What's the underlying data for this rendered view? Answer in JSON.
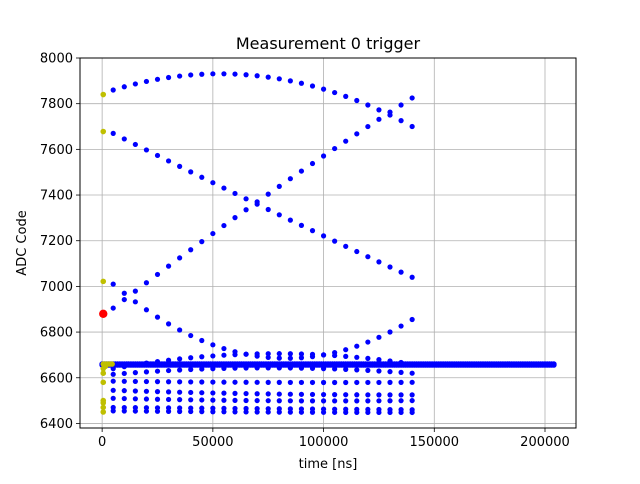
{
  "chart_data": {
    "type": "scatter",
    "title": "Measurement 0 trigger",
    "xlabel": "time [ns]",
    "ylabel": "ADC Code",
    "xlim": [
      -10000,
      214000
    ],
    "ylim": [
      6380,
      8000
    ],
    "grid": true,
    "xticks": [
      0,
      50000,
      100000,
      150000,
      200000
    ],
    "xtick_labels": [
      "0",
      "50000",
      "100000",
      "150000",
      "200000"
    ],
    "yticks": [
      6400,
      6600,
      6800,
      7000,
      7200,
      7400,
      7600,
      7800,
      8000
    ],
    "ytick_labels": [
      "6400",
      "6600",
      "6800",
      "7000",
      "7200",
      "7400",
      "7600",
      "7800",
      "8000"
    ],
    "colors": {
      "main": "#0000ff",
      "pre": "#bfbf00",
      "trigger": "#ff0000"
    },
    "series": [
      {
        "color": "#0000ff",
        "description": "curves sampled every 5000 ns from 5000 to 140000 ns",
        "x_start": 5000,
        "x_step": 5000,
        "count": 28,
        "curves": [
          {
            "kind": "quadratic",
            "points": [
              [
                5000,
                7860
              ],
              [
                47500,
                7930
              ],
              [
                140000,
                7700
              ]
            ]
          },
          {
            "kind": "quadratic",
            "points": [
              [
                5000,
                7670
              ],
              [
                70000,
                7360
              ],
              [
                140000,
                7040
              ]
            ]
          },
          {
            "kind": "quadratic",
            "points": [
              [
                5000,
                6905
              ],
              [
                70000,
                7370
              ],
              [
                140000,
                7825
              ]
            ]
          },
          {
            "kind": "quadratic",
            "points": [
              [
                5000,
                7010
              ],
              [
                100000,
                6700
              ],
              [
                140000,
                6855
              ]
            ]
          },
          {
            "kind": "quadratic",
            "points": [
              [
                5000,
                6640
              ],
              [
                100000,
                6700
              ],
              [
                140000,
                6660
              ]
            ]
          },
          {
            "kind": "quadratic",
            "points": [
              [
                5000,
                6615
              ],
              [
                100000,
                6640
              ],
              [
                140000,
                6620
              ]
            ]
          },
          {
            "kind": "quadratic",
            "points": [
              [
                5000,
                6585
              ],
              [
                70000,
                6580
              ],
              [
                140000,
                6580
              ]
            ]
          },
          {
            "kind": "quadratic",
            "points": [
              [
                5000,
                6545
              ],
              [
                70000,
                6530
              ],
              [
                140000,
                6525
              ]
            ]
          },
          {
            "kind": "quadratic",
            "points": [
              [
                5000,
                6510
              ],
              [
                70000,
                6500
              ],
              [
                140000,
                6500
              ]
            ]
          },
          {
            "kind": "quadratic",
            "points": [
              [
                5000,
                6470
              ],
              [
                70000,
                6465
              ],
              [
                140000,
                6460
              ]
            ]
          },
          {
            "kind": "quadratic",
            "points": [
              [
                5000,
                6455
              ],
              [
                70000,
                6450
              ],
              [
                140000,
                6448
              ]
            ]
          }
        ]
      },
      {
        "color": "#0000ff",
        "description": "dense baseline samples",
        "x_start": 0,
        "x_step": 1000,
        "count": 205,
        "y_values": [
          6656,
          6660
        ]
      },
      {
        "color": "#bfbf00",
        "description": "pre-trigger samples near t=0",
        "x": [
          500,
          500,
          500,
          500,
          500,
          500,
          500,
          500,
          500,
          500,
          1500,
          2500,
          3500,
          4500,
          500,
          1500
        ],
        "y": [
          7840,
          7678,
          7022,
          6640,
          6620,
          6580,
          6500,
          6490,
          6470,
          6450,
          6660,
          6660,
          6660,
          6660,
          6660,
          6650
        ]
      },
      {
        "color": "#ff0000",
        "description": "trigger sample",
        "x": [
          500
        ],
        "y": [
          6880
        ]
      }
    ]
  }
}
